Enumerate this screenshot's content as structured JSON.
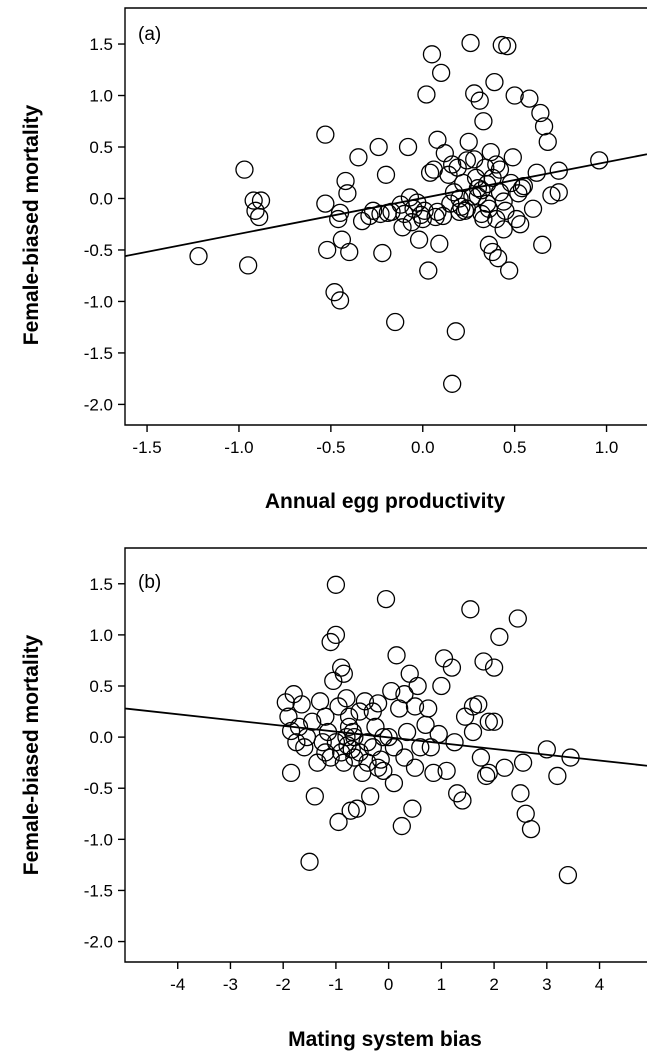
{
  "chart_data": [
    {
      "type": "scatter",
      "panel_label": "(a)",
      "xlabel": "Annual egg productivity",
      "ylabel": "Female-biased mortality",
      "xlim": [
        -1.62,
        1.22
      ],
      "ylim": [
        -2.2,
        1.85
      ],
      "xticks": [
        -1.5,
        -1.0,
        -0.5,
        0.0,
        0.5,
        1.0
      ],
      "xtick_labels": [
        "-1.5",
        "-1.0",
        "-0.5",
        "0.0",
        "0.5",
        "1.0"
      ],
      "yticks": [
        -2.0,
        -1.5,
        -1.0,
        -0.5,
        0.0,
        0.5,
        1.0,
        1.5
      ],
      "ytick_labels": [
        "-2.0",
        "-1.5",
        "-1.0",
        "-0.5",
        "0.0",
        "0.5",
        "1.0",
        "1.5"
      ],
      "regression_line": {
        "x": [
          -1.62,
          1.22
        ],
        "y": [
          -0.56,
          0.43
        ]
      },
      "points": [
        [
          -1.22,
          -0.56
        ],
        [
          -0.97,
          0.28
        ],
        [
          -0.95,
          -0.65
        ],
        [
          -0.92,
          -0.02
        ],
        [
          -0.91,
          -0.12
        ],
        [
          -0.88,
          -0.02
        ],
        [
          -0.89,
          -0.18
        ],
        [
          -0.53,
          0.62
        ],
        [
          -0.53,
          -0.05
        ],
        [
          -0.52,
          -0.5
        ],
        [
          -0.48,
          -0.91
        ],
        [
          -0.46,
          -0.2
        ],
        [
          -0.45,
          -0.99
        ],
        [
          -0.44,
          -0.4
        ],
        [
          -0.42,
          0.17
        ],
        [
          -0.41,
          0.05
        ],
        [
          -0.4,
          -0.52
        ],
        [
          -0.45,
          -0.14
        ],
        [
          -0.35,
          0.4
        ],
        [
          -0.33,
          -0.22
        ],
        [
          -0.29,
          -0.17
        ],
        [
          -0.27,
          -0.12
        ],
        [
          -0.24,
          0.5
        ],
        [
          -0.23,
          -0.15
        ],
        [
          -0.22,
          -0.53
        ],
        [
          -0.2,
          0.23
        ],
        [
          -0.19,
          -0.14
        ],
        [
          -0.17,
          -0.13
        ],
        [
          -0.15,
          -1.2
        ],
        [
          -0.12,
          -0.06
        ],
        [
          -0.11,
          -0.28
        ],
        [
          -0.1,
          -0.15
        ],
        [
          -0.08,
          0.5
        ],
        [
          -0.07,
          0.01
        ],
        [
          -0.06,
          -0.23
        ],
        [
          -0.05,
          -0.1
        ],
        [
          -0.03,
          -0.04
        ],
        [
          -0.02,
          -0.4
        ],
        [
          -0.01,
          -0.16
        ],
        [
          0.0,
          -0.2
        ],
        [
          0.01,
          -0.12
        ],
        [
          0.02,
          1.01
        ],
        [
          0.03,
          -0.7
        ],
        [
          0.04,
          0.25
        ],
        [
          0.05,
          1.4
        ],
        [
          0.06,
          0.28
        ],
        [
          0.07,
          -0.18
        ],
        [
          0.08,
          -0.13
        ],
        [
          0.08,
          0.57
        ],
        [
          0.09,
          -0.44
        ],
        [
          0.1,
          1.22
        ],
        [
          0.11,
          -0.17
        ],
        [
          0.12,
          0.44
        ],
        [
          0.14,
          0.23
        ],
        [
          0.15,
          -0.05
        ],
        [
          0.16,
          0.33
        ],
        [
          0.17,
          0.06
        ],
        [
          0.18,
          -1.29
        ],
        [
          0.19,
          0.3
        ],
        [
          0.2,
          -0.13
        ],
        [
          0.21,
          -0.08
        ],
        [
          0.22,
          0.15
        ],
        [
          0.23,
          -0.12
        ],
        [
          0.24,
          0.37
        ],
        [
          0.25,
          0.55
        ],
        [
          0.26,
          1.51
        ],
        [
          0.27,
          0.02
        ],
        [
          0.28,
          1.02
        ],
        [
          0.29,
          0.2
        ],
        [
          0.3,
          0.1
        ],
        [
          0.31,
          0.95
        ],
        [
          0.32,
          -0.15
        ],
        [
          0.33,
          0.75
        ],
        [
          0.34,
          0.3
        ],
        [
          0.35,
          -0.05
        ],
        [
          0.36,
          -0.45
        ],
        [
          0.37,
          0.45
        ],
        [
          0.38,
          0.2
        ],
        [
          0.39,
          1.13
        ],
        [
          0.4,
          -0.2
        ],
        [
          0.41,
          -0.58
        ],
        [
          0.42,
          0.06
        ],
        [
          0.43,
          1.49
        ],
        [
          0.44,
          -0.3
        ],
        [
          0.45,
          -0.12
        ],
        [
          0.46,
          1.48
        ],
        [
          0.47,
          -0.7
        ],
        [
          0.48,
          0.15
        ],
        [
          0.49,
          0.4
        ],
        [
          0.5,
          1.0
        ],
        [
          0.51,
          -0.2
        ],
        [
          0.52,
          0.05
        ],
        [
          0.53,
          -0.25
        ],
        [
          0.54,
          0.1
        ],
        [
          0.55,
          0.12
        ],
        [
          0.58,
          0.97
        ],
        [
          0.6,
          -0.1
        ],
        [
          0.62,
          0.25
        ],
        [
          0.64,
          0.83
        ],
        [
          0.65,
          -0.45
        ],
        [
          0.66,
          0.7
        ],
        [
          0.68,
          0.55
        ],
        [
          0.7,
          0.03
        ],
        [
          0.74,
          0.06
        ],
        [
          0.74,
          0.27
        ],
        [
          0.96,
          0.37
        ],
        [
          0.28,
          0.38
        ],
        [
          0.3,
          0.02
        ],
        [
          0.33,
          -0.2
        ],
        [
          0.35,
          0.14
        ],
        [
          0.36,
          -0.1
        ],
        [
          0.4,
          0.33
        ],
        [
          0.44,
          -0.03
        ],
        [
          0.38,
          -0.52
        ],
        [
          0.2,
          0.0
        ],
        [
          0.24,
          -0.1
        ],
        [
          0.16,
          -1.8
        ],
        [
          0.32,
          0.08
        ],
        [
          0.42,
          0.28
        ]
      ]
    },
    {
      "type": "scatter",
      "panel_label": "(b)",
      "xlabel": "Mating system bias",
      "ylabel": "Female-biased mortality",
      "xlim": [
        -5.0,
        4.9
      ],
      "ylim": [
        -2.2,
        1.85
      ],
      "xticks": [
        -4,
        -3,
        -2,
        -1,
        0,
        1,
        2,
        3,
        4
      ],
      "xtick_labels": [
        "-4",
        "-3",
        "-2",
        "-1",
        "0",
        "1",
        "2",
        "3",
        "4"
      ],
      "yticks": [
        -2.0,
        -1.5,
        -1.0,
        -0.5,
        0.0,
        0.5,
        1.0,
        1.5
      ],
      "ytick_labels": [
        "-2.0",
        "-1.5",
        "-1.0",
        "-0.5",
        "0.0",
        "0.5",
        "1.0",
        "1.5"
      ],
      "regression_line": {
        "x": [
          -5.0,
          4.9
        ],
        "y": [
          0.28,
          -0.28
        ]
      },
      "points": [
        [
          -1.95,
          0.34
        ],
        [
          -1.9,
          0.2
        ],
        [
          -1.85,
          0.06
        ],
        [
          -1.85,
          -0.35
        ],
        [
          -1.8,
          0.42
        ],
        [
          -1.75,
          -0.05
        ],
        [
          -1.7,
          0.1
        ],
        [
          -1.65,
          0.32
        ],
        [
          -1.6,
          -0.1
        ],
        [
          -1.55,
          0.0
        ],
        [
          -1.5,
          -1.22
        ],
        [
          -1.45,
          0.15
        ],
        [
          -1.4,
          -0.58
        ],
        [
          -1.35,
          -0.25
        ],
        [
          -1.3,
          0.35
        ],
        [
          -1.25,
          -0.05
        ],
        [
          -1.2,
          0.2
        ],
        [
          -1.15,
          0.05
        ],
        [
          -1.1,
          0.93
        ],
        [
          -1.05,
          0.55
        ],
        [
          -1.0,
          1.49
        ],
        [
          -1.0,
          1.0
        ],
        [
          -0.95,
          0.3
        ],
        [
          -0.95,
          -0.83
        ],
        [
          -0.9,
          0.68
        ],
        [
          -0.85,
          0.62
        ],
        [
          -0.8,
          0.38
        ],
        [
          -0.78,
          -0.08
        ],
        [
          -0.75,
          0.1
        ],
        [
          -0.72,
          -0.72
        ],
        [
          -0.7,
          -0.12
        ],
        [
          -0.68,
          0.05
        ],
        [
          -0.65,
          -0.2
        ],
        [
          -0.6,
          -0.7
        ],
        [
          -0.55,
          0.25
        ],
        [
          -0.5,
          -0.35
        ],
        [
          -0.45,
          0.35
        ],
        [
          -0.4,
          -0.05
        ],
        [
          -0.35,
          -0.58
        ],
        [
          -0.3,
          0.25
        ],
        [
          -0.25,
          0.1
        ],
        [
          -0.2,
          0.33
        ],
        [
          -0.15,
          -0.22
        ],
        [
          -0.1,
          -0.33
        ],
        [
          -0.05,
          1.35
        ],
        [
          0.0,
          0.0
        ],
        [
          0.05,
          0.45
        ],
        [
          0.1,
          -0.45
        ],
        [
          0.15,
          0.8
        ],
        [
          0.2,
          0.28
        ],
        [
          0.25,
          -0.87
        ],
        [
          0.3,
          0.42
        ],
        [
          0.35,
          0.05
        ],
        [
          0.4,
          0.62
        ],
        [
          0.45,
          -0.7
        ],
        [
          0.5,
          0.3
        ],
        [
          0.55,
          0.5
        ],
        [
          0.6,
          -0.1
        ],
        [
          0.7,
          0.12
        ],
        [
          0.75,
          0.28
        ],
        [
          0.85,
          -0.35
        ],
        [
          0.95,
          0.03
        ],
        [
          1.0,
          0.5
        ],
        [
          1.05,
          0.77
        ],
        [
          1.1,
          -0.33
        ],
        [
          1.2,
          0.68
        ],
        [
          1.3,
          -0.55
        ],
        [
          1.4,
          -0.62
        ],
        [
          1.45,
          0.2
        ],
        [
          1.55,
          1.25
        ],
        [
          1.6,
          0.3
        ],
        [
          1.7,
          0.32
        ],
        [
          1.8,
          0.74
        ],
        [
          1.85,
          -0.38
        ],
        [
          1.9,
          0.15
        ],
        [
          2.0,
          0.68
        ],
        [
          2.1,
          0.98
        ],
        [
          2.2,
          -0.3
        ],
        [
          2.45,
          1.16
        ],
        [
          2.5,
          -0.55
        ],
        [
          2.55,
          -0.25
        ],
        [
          2.6,
          -0.75
        ],
        [
          2.7,
          -0.9
        ],
        [
          3.0,
          -0.12
        ],
        [
          3.2,
          -0.38
        ],
        [
          3.4,
          -1.35
        ],
        [
          3.45,
          -0.2
        ],
        [
          -1.2,
          -0.15
        ],
        [
          -1.1,
          -0.2
        ],
        [
          -1.0,
          -0.05
        ],
        [
          -0.9,
          -0.15
        ],
        [
          -0.85,
          -0.25
        ],
        [
          -0.8,
          0.0
        ],
        [
          -0.75,
          0.2
        ],
        [
          -0.65,
          0.0
        ],
        [
          -0.55,
          -0.15
        ],
        [
          -0.4,
          -0.25
        ],
        [
          -0.3,
          -0.1
        ],
        [
          -0.2,
          -0.3
        ],
        [
          -0.1,
          0.0
        ],
        [
          0.1,
          -0.1
        ],
        [
          0.3,
          -0.2
        ],
        [
          0.5,
          -0.3
        ],
        [
          0.8,
          -0.1
        ],
        [
          1.25,
          -0.05
        ],
        [
          1.6,
          0.05
        ],
        [
          1.75,
          -0.2
        ],
        [
          1.9,
          -0.35
        ],
        [
          2.0,
          0.15
        ]
      ]
    }
  ]
}
